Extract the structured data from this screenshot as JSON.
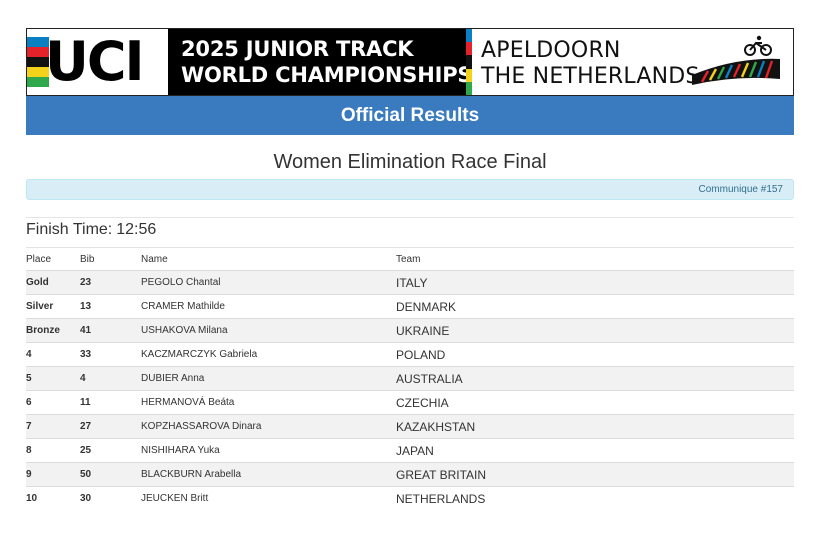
{
  "banner": {
    "uci_logo": "UCI",
    "event_line1": "2025 JUNIOR TRACK",
    "event_line2": "WORLD CHAMPIONSHIPS",
    "city_line1": "APELDOORN",
    "city_line2": "THE NETHERLANDS",
    "stripe_colors": [
      "#0a7fc1",
      "#e4222a",
      "#111111",
      "#f4d11a",
      "#2ea84a"
    ]
  },
  "header": {
    "title": "Official Results"
  },
  "race": {
    "title": "Women Elimination Race Final",
    "communique": "Communique #157",
    "finish_time_label": "Finish Time:",
    "finish_time_value": "12:56"
  },
  "table": {
    "columns": [
      "Place",
      "Bib",
      "Name",
      "Team"
    ],
    "rows": [
      {
        "place": "Gold",
        "bib": "23",
        "name": "PEGOLO Chantal",
        "team": "ITALY"
      },
      {
        "place": "Silver",
        "bib": "13",
        "name": "CRAMER Mathilde",
        "team": "DENMARK"
      },
      {
        "place": "Bronze",
        "bib": "41",
        "name": "USHAKOVA Milana",
        "team": "UKRAINE"
      },
      {
        "place": "4",
        "bib": "33",
        "name": "KACZMARCZYK Gabriela",
        "team": "POLAND"
      },
      {
        "place": "5",
        "bib": "4",
        "name": "DUBIER Anna",
        "team": "AUSTRALIA"
      },
      {
        "place": "6",
        "bib": "11",
        "name": "HERMANOVÁ Beáta",
        "team": "CZECHIA"
      },
      {
        "place": "7",
        "bib": "27",
        "name": "KOPZHASSAROVA Dinara",
        "team": "KAZAKHSTAN"
      },
      {
        "place": "8",
        "bib": "25",
        "name": "NISHIHARA Yuka",
        "team": "JAPAN"
      },
      {
        "place": "9",
        "bib": "50",
        "name": "BLACKBURN Arabella",
        "team": "GREAT BRITAIN"
      },
      {
        "place": "10",
        "bib": "30",
        "name": "JEUCKEN Britt",
        "team": "NETHERLANDS"
      }
    ]
  },
  "colors": {
    "header_bar": "#3a7bbf",
    "communique_bg": "#d9edf7",
    "row_alt": "#f2f2f2"
  }
}
